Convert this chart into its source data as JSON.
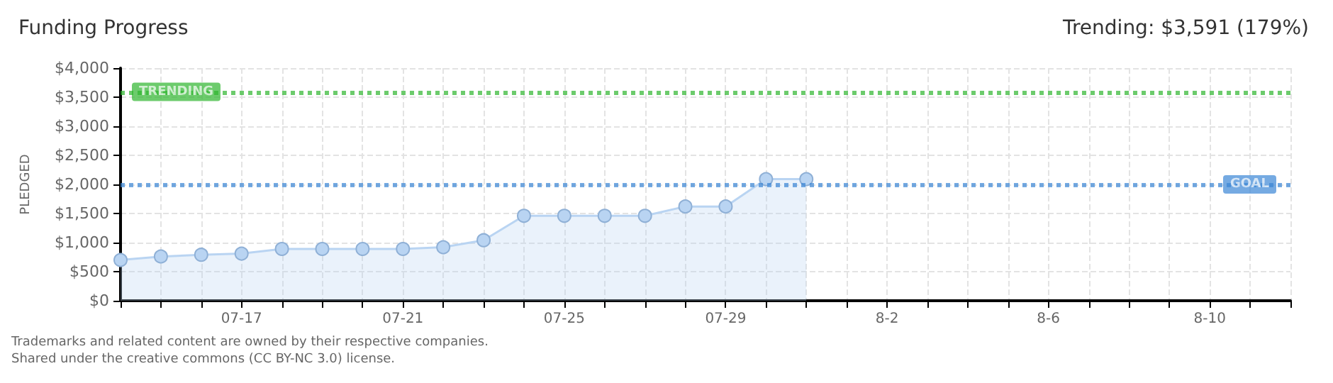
{
  "chart_data": {
    "type": "area",
    "title": "Funding Progress",
    "subtitle": "Trending: $3,591 (179%)",
    "ylabel": "PLEDGED",
    "x": [
      "--07-14",
      "--07-15",
      "--07-16",
      "--07-17",
      "--07-18",
      "--07-19",
      "--07-20",
      "--07-21",
      "--07-22",
      "--07-23",
      "--07-24",
      "--07-25",
      "--07-26",
      "--07-27",
      "--07-28",
      "--07-29",
      "--07-30",
      "--07-31"
    ],
    "series": [
      {
        "color": "#b9d4f2",
        "values": [
          700,
          760,
          790,
          810,
          890,
          890,
          890,
          890,
          920,
          1040,
          1460,
          1460,
          1460,
          1460,
          1620,
          1620,
          2090,
          2090
        ]
      }
    ],
    "xlim": [
      "--07-14",
      "--08-12"
    ],
    "xticks": [
      {
        "value": "--07-14",
        "label": null
      },
      {
        "value": "--07-15",
        "label": null
      },
      {
        "value": "--07-16",
        "label": null
      },
      {
        "value": "--07-17",
        "label": "07-17"
      },
      {
        "value": "--07-18",
        "label": null
      },
      {
        "value": "--07-19",
        "label": null
      },
      {
        "value": "--07-20",
        "label": null
      },
      {
        "value": "--07-21",
        "label": "07-21"
      },
      {
        "value": "--07-22",
        "label": null
      },
      {
        "value": "--07-23",
        "label": null
      },
      {
        "value": "--07-24",
        "label": null
      },
      {
        "value": "--07-25",
        "label": "07-25"
      },
      {
        "value": "--07-26",
        "label": null
      },
      {
        "value": "--07-27",
        "label": null
      },
      {
        "value": "--07-28",
        "label": null
      },
      {
        "value": "--07-29",
        "label": "07-29"
      },
      {
        "value": "--07-30",
        "label": null
      },
      {
        "value": "--07-31",
        "label": null
      },
      {
        "value": "--08-01",
        "label": null
      },
      {
        "value": "--08-02",
        "label": "8-2"
      },
      {
        "value": "--08-03",
        "label": null
      },
      {
        "value": "--08-04",
        "label": null
      },
      {
        "value": "--08-05",
        "label": null
      },
      {
        "value": "--08-06",
        "label": "8-6"
      },
      {
        "value": "--08-07",
        "label": null
      },
      {
        "value": "--08-08",
        "label": null
      },
      {
        "value": "--08-09",
        "label": null
      },
      {
        "value": "--08-10",
        "label": "8-10"
      },
      {
        "value": "--08-11",
        "label": null
      },
      {
        "value": "--08-12",
        "label": null
      }
    ],
    "ylim": [
      0,
      4000
    ],
    "yticks": [
      {
        "value": 0,
        "label": "$0"
      },
      {
        "value": 500,
        "label": "$500"
      },
      {
        "value": 1000,
        "label": "$1,000"
      },
      {
        "value": 1500,
        "label": "$1,500"
      },
      {
        "value": 2000,
        "label": "$2,000"
      },
      {
        "value": 2500,
        "label": "$2,500"
      },
      {
        "value": 3000,
        "label": "$3,000"
      },
      {
        "value": 3500,
        "label": "$3,500"
      },
      {
        "value": 4000,
        "label": "$4,000"
      }
    ],
    "ref_lines": [
      {
        "axis": "y",
        "value": 3591,
        "label": "TRENDING",
        "color": "#2db52d",
        "line_style": "dotted"
      },
      {
        "axis": "y",
        "value": 2000,
        "label": "GOAL",
        "color": "#3b86d6",
        "line_style": "dotted"
      }
    ],
    "annotations": [
      "Trademarks and related content are owned by their respective companies.",
      "Shared under the creative commons (CC BY-NC 3.0) license."
    ],
    "grid": true,
    "marker": "circle"
  }
}
